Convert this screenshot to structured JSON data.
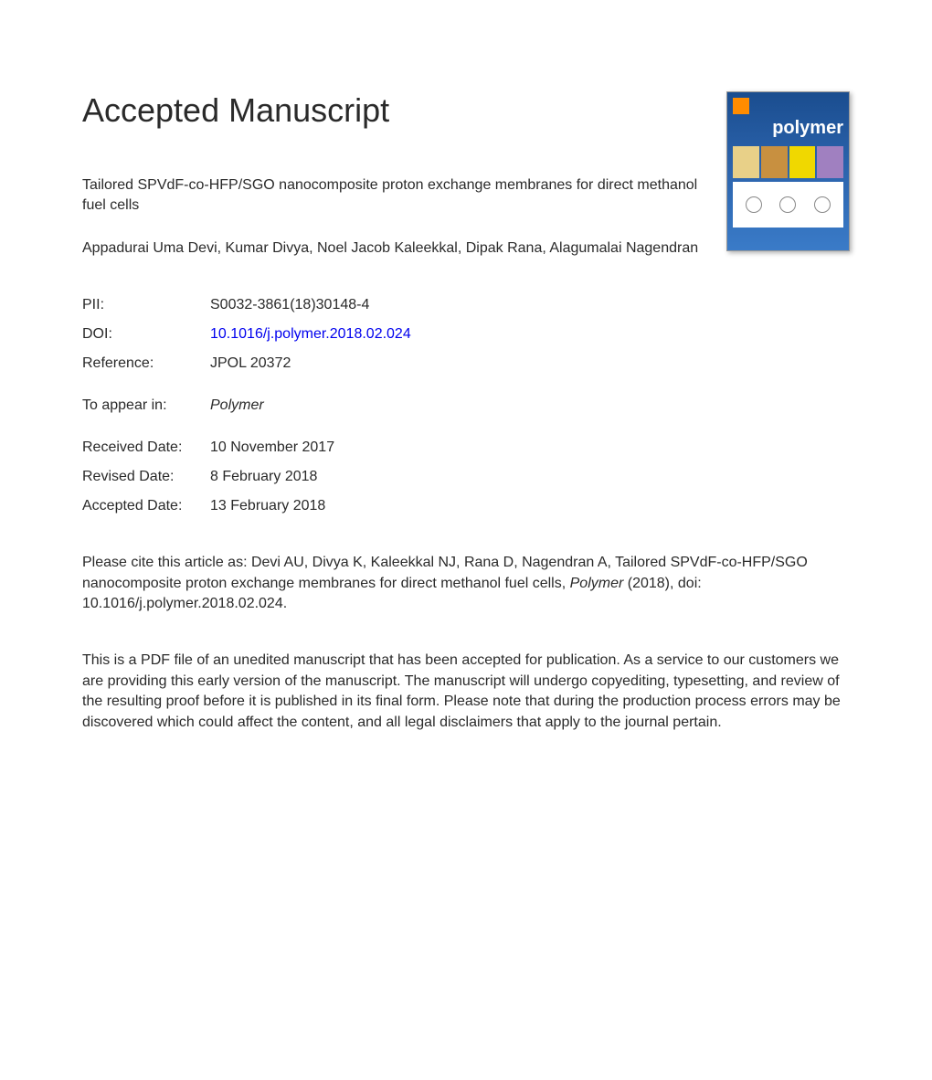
{
  "page": {
    "heading": "Accepted Manuscript",
    "article_title": "Tailored SPVdF-co-HFP/SGO nanocomposite proton exchange membranes for direct methanol fuel cells",
    "authors": "Appadurai Uma Devi, Kumar Divya, Noel Jacob Kaleekkal, Dipak Rana, Alagumalai Nagendran",
    "journal_cover": {
      "title": "polymer"
    },
    "metadata": {
      "pii_label": "PII:",
      "pii_value": "S0032-3861(18)30148-4",
      "doi_label": "DOI:",
      "doi_value": "10.1016/j.polymer.2018.02.024",
      "reference_label": "Reference:",
      "reference_value": "JPOL 20372",
      "appear_label": "To appear in:",
      "appear_value": "Polymer",
      "received_label": "Received Date:",
      "received_value": "10 November 2017",
      "revised_label": "Revised Date:",
      "revised_value": "8 February 2018",
      "accepted_label": "Accepted Date:",
      "accepted_value": "13 February 2018"
    },
    "citation": {
      "prefix": "Please cite this article as: Devi AU, Divya K, Kaleekkal NJ, Rana D, Nagendran A, Tailored SPVdF-co-HFP/SGO nanocomposite proton exchange membranes for direct methanol fuel cells, ",
      "journal": "Polymer",
      "suffix": " (2018), doi: 10.1016/j.polymer.2018.02.024."
    },
    "disclaimer": "This is a PDF file of an unedited manuscript that has been accepted for publication. As a service to our customers we are providing this early version of the manuscript. The manuscript will undergo copyediting, typesetting, and review of the resulting proof before it is published in its final form. Please note that during the production process errors may be discovered which could affect the content, and all legal disclaimers that apply to the journal pertain."
  },
  "styles": {
    "background_color": "#ffffff",
    "text_color": "#2a2a2a",
    "link_color": "#0000ee",
    "heading_fontsize": 36,
    "body_fontsize": 16,
    "cover_gradient_top": "#1a4d8f",
    "cover_gradient_bottom": "#3a7bc8"
  }
}
